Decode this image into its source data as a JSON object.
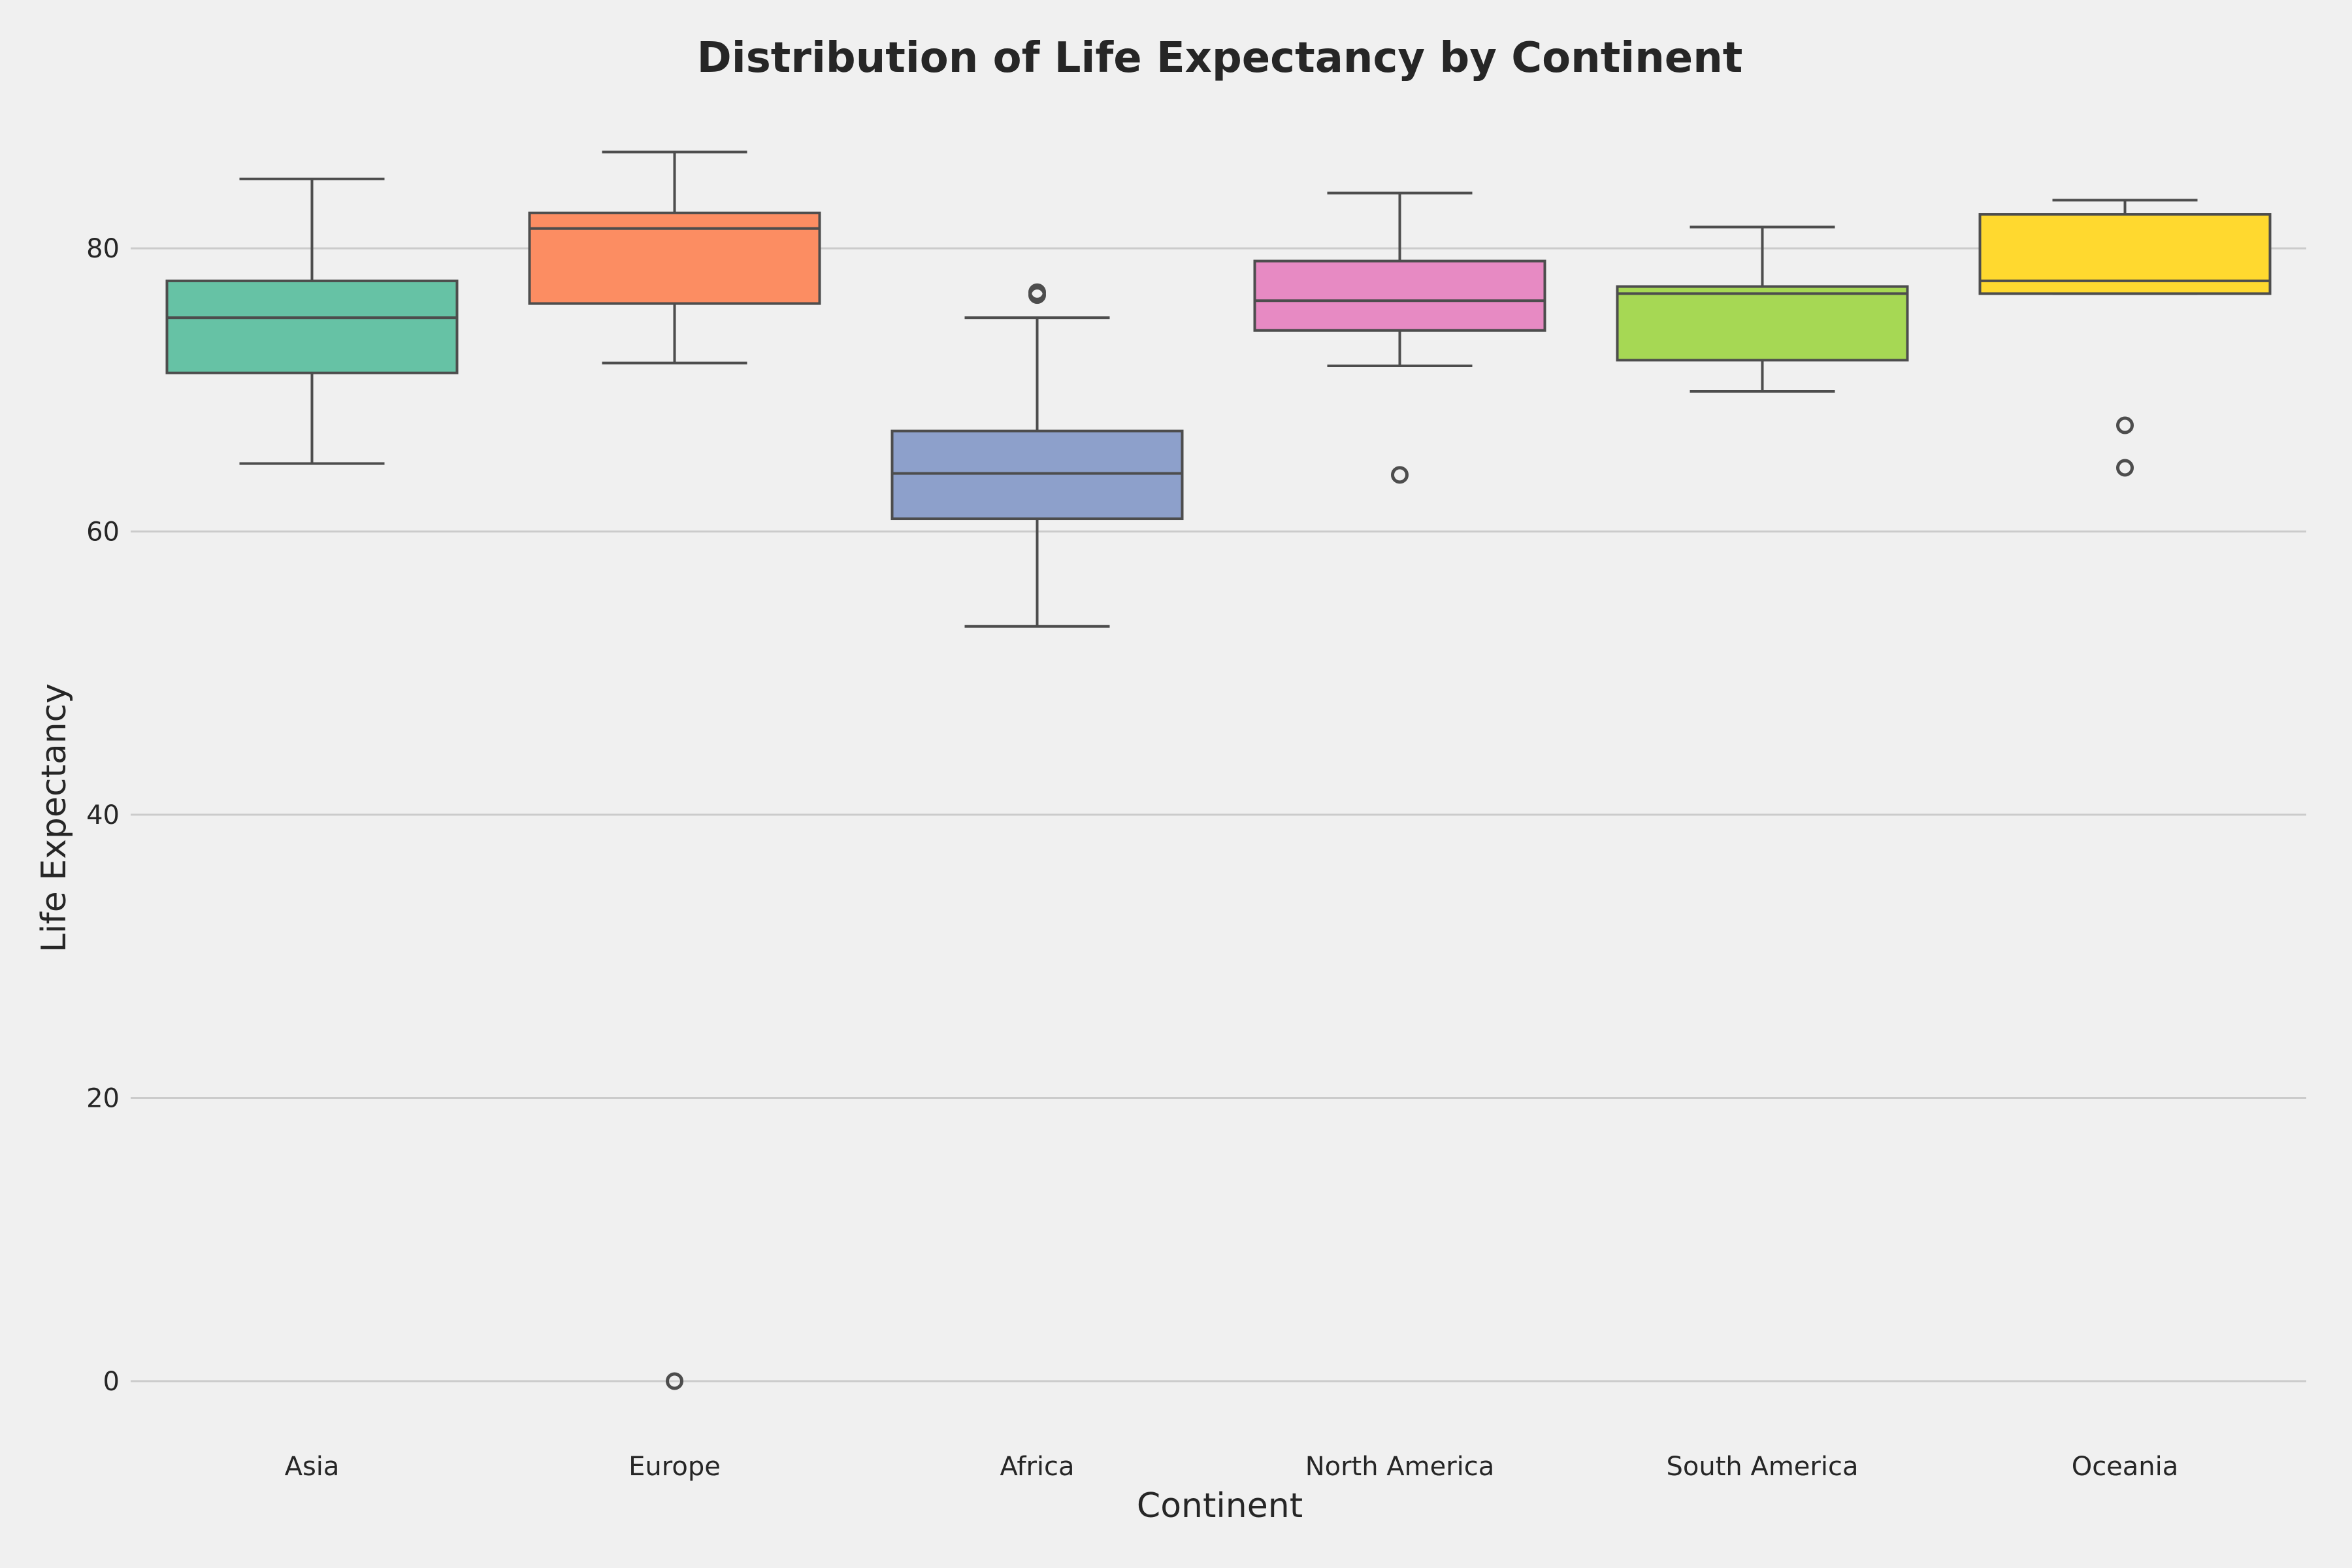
{
  "chart_data": {
    "type": "box",
    "title": "Distribution of Life Expectancy by Continent",
    "xlabel": "Continent",
    "ylabel": "Life Expectancy",
    "ylim": [
      -3,
      89
    ],
    "yticks": [
      0,
      20,
      40,
      60,
      80
    ],
    "grid": "horizontal",
    "categories": [
      "Asia",
      "Europe",
      "Africa",
      "North America",
      "South America",
      "Oceania"
    ],
    "series": [
      {
        "category": "Asia",
        "color": "#66c2a5",
        "whisker_low": 64.8,
        "q1": 71.2,
        "median": 75.1,
        "q3": 77.7,
        "whisker_high": 84.9,
        "outliers": []
      },
      {
        "category": "Europe",
        "color": "#fc8d62",
        "whisker_low": 71.9,
        "q1": 76.1,
        "median": 81.4,
        "q3": 82.5,
        "whisker_high": 86.8,
        "outliers": [
          0
        ]
      },
      {
        "category": "Africa",
        "color": "#8da0cb",
        "whisker_low": 53.3,
        "q1": 60.9,
        "median": 64.1,
        "q3": 67.1,
        "whisker_high": 75.1,
        "outliers": [
          76.7,
          76.9
        ]
      },
      {
        "category": "North America",
        "color": "#e78ac3",
        "whisker_low": 71.7,
        "q1": 74.2,
        "median": 76.3,
        "q3": 79.1,
        "whisker_high": 83.9,
        "outliers": [
          64.0
        ]
      },
      {
        "category": "South America",
        "color": "#a6d854",
        "whisker_low": 69.9,
        "q1": 72.1,
        "median": 76.8,
        "q3": 77.3,
        "whisker_high": 81.5,
        "outliers": []
      },
      {
        "category": "Oceania",
        "color": "#ffd92f",
        "whisker_low": 76.8,
        "q1": 76.8,
        "median": 77.7,
        "q3": 82.4,
        "whisker_high": 83.4,
        "outliers": [
          67.5,
          64.5
        ]
      }
    ]
  }
}
